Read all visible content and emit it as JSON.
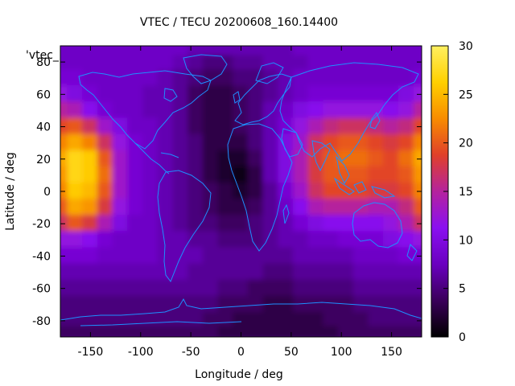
{
  "chart_data": {
    "type": "heatmap",
    "title": "VTEC / TECU 20200608_160.14400",
    "key_label": "'vtec_",
    "xlabel": "Longitude / deg",
    "ylabel": "Latitude / deg",
    "xlim": [
      -180,
      180
    ],
    "ylim": [
      -90,
      90
    ],
    "x_ticks": [
      -150,
      -100,
      -50,
      0,
      50,
      100,
      150
    ],
    "y_ticks": [
      -80,
      -60,
      -40,
      -20,
      0,
      20,
      40,
      60,
      80
    ],
    "x_tick_labels": [
      "-150",
      "-100",
      "-50",
      "0",
      "50",
      "100",
      "150"
    ],
    "y_tick_labels": [
      "-80",
      "-60",
      "-40",
      "-20",
      "0",
      "20",
      "40",
      "60",
      "80"
    ],
    "colorbar": {
      "range": [
        0,
        30
      ],
      "ticks": [
        0,
        5,
        10,
        15,
        20,
        25,
        30
      ],
      "tick_labels": [
        "0",
        "5",
        "10",
        "15",
        "20",
        "25",
        "30"
      ],
      "palette": [
        "#000000",
        "#3a0059",
        "#6a00c0",
        "#8a10f0",
        "#b5239d",
        "#e0402a",
        "#f88c00",
        "#ffd000",
        "#fff060"
      ]
    },
    "grid": false,
    "coastline_color": "#1e90ff",
    "longitudes": [
      -180,
      -165,
      -150,
      -135,
      -120,
      -105,
      -90,
      -75,
      -60,
      -45,
      -30,
      -15,
      0,
      15,
      30,
      45,
      60,
      75,
      90,
      105,
      120,
      135,
      150,
      165,
      180
    ],
    "latitudes": [
      87.5,
      80,
      70,
      60,
      50,
      40,
      30,
      20,
      10,
      0,
      -10,
      -20,
      -30,
      -40,
      -50,
      -60,
      -70,
      -80,
      -87.5
    ],
    "vtec": [
      [
        8,
        8,
        8,
        8,
        8,
        8,
        8,
        8,
        8,
        7,
        7,
        7,
        7,
        7,
        7,
        7,
        8,
        8,
        8,
        8,
        8,
        8,
        8,
        8,
        8
      ],
      [
        8,
        8,
        8,
        8,
        8,
        8,
        8,
        8,
        7,
        6,
        5,
        5,
        6,
        6,
        7,
        7,
        7,
        8,
        8,
        8,
        8,
        8,
        8,
        8,
        8
      ],
      [
        9,
        9,
        8,
        8,
        8,
        8,
        8,
        7,
        6,
        5,
        4,
        4,
        5,
        5,
        6,
        7,
        8,
        8,
        8,
        8,
        8,
        8,
        8,
        8,
        9
      ],
      [
        12,
        10,
        9,
        8,
        8,
        8,
        7,
        7,
        6,
        4,
        3,
        3,
        4,
        5,
        6,
        7,
        8,
        9,
        9,
        9,
        9,
        9,
        9,
        10,
        12
      ],
      [
        15,
        14,
        11,
        9,
        8,
        8,
        7,
        7,
        6,
        4,
        3,
        3,
        4,
        5,
        7,
        8,
        10,
        11,
        12,
        12,
        12,
        12,
        11,
        12,
        15
      ],
      [
        19,
        20,
        17,
        13,
        10,
        8,
        8,
        7,
        6,
        4,
        3,
        3,
        4,
        5,
        7,
        9,
        12,
        14,
        16,
        17,
        17,
        16,
        15,
        16,
        19
      ],
      [
        22,
        24,
        22,
        17,
        12,
        9,
        8,
        7,
        6,
        5,
        3,
        3,
        3,
        5,
        7,
        10,
        13,
        17,
        19,
        20,
        20,
        19,
        18,
        19,
        22
      ],
      [
        24,
        27,
        26,
        20,
        13,
        9,
        8,
        7,
        6,
        5,
        3,
        2,
        2,
        4,
        7,
        10,
        14,
        18,
        20,
        21,
        21,
        20,
        19,
        21,
        24
      ],
      [
        23,
        27,
        26,
        21,
        13,
        9,
        8,
        7,
        6,
        5,
        3,
        2,
        1,
        3,
        7,
        10,
        14,
        18,
        20,
        20,
        20,
        19,
        19,
        20,
        23
      ],
      [
        22,
        26,
        25,
        20,
        13,
        9,
        8,
        7,
        6,
        5,
        4,
        3,
        2,
        3,
        6,
        9,
        13,
        17,
        19,
        19,
        19,
        18,
        18,
        19,
        22
      ],
      [
        20,
        24,
        23,
        18,
        12,
        9,
        8,
        7,
        6,
        5,
        4,
        3,
        3,
        4,
        6,
        8,
        11,
        14,
        15,
        15,
        15,
        14,
        14,
        16,
        20
      ],
      [
        17,
        20,
        18,
        14,
        10,
        8,
        8,
        7,
        6,
        5,
        5,
        4,
        4,
        5,
        6,
        7,
        9,
        10,
        11,
        11,
        11,
        11,
        12,
        14,
        17
      ],
      [
        12,
        12,
        11,
        9,
        8,
        8,
        8,
        7,
        7,
        6,
        6,
        5,
        5,
        5,
        6,
        7,
        7,
        8,
        8,
        9,
        9,
        9,
        10,
        11,
        12
      ],
      [
        9,
        9,
        9,
        8,
        8,
        8,
        8,
        7,
        7,
        7,
        6,
        6,
        6,
        6,
        6,
        6,
        7,
        7,
        7,
        7,
        8,
        8,
        8,
        9,
        9
      ],
      [
        7,
        7,
        7,
        7,
        7,
        7,
        7,
        7,
        7,
        6,
        6,
        6,
        6,
        6,
        5,
        5,
        6,
        6,
        6,
        6,
        7,
        7,
        7,
        7,
        7
      ],
      [
        6,
        6,
        6,
        6,
        6,
        6,
        6,
        6,
        6,
        6,
        6,
        5,
        5,
        4,
        4,
        4,
        5,
        5,
        5,
        5,
        6,
        6,
        6,
        6,
        6
      ],
      [
        5,
        5,
        5,
        5,
        5,
        5,
        5,
        5,
        5,
        5,
        5,
        4,
        4,
        4,
        3,
        3,
        4,
        4,
        4,
        4,
        5,
        5,
        5,
        5,
        5
      ],
      [
        5,
        5,
        5,
        5,
        5,
        5,
        5,
        5,
        5,
        5,
        4,
        4,
        3,
        3,
        3,
        3,
        3,
        3,
        4,
        4,
        4,
        5,
        5,
        5,
        5
      ],
      [
        4,
        4,
        4,
        4,
        4,
        4,
        4,
        4,
        4,
        4,
        4,
        3,
        3,
        3,
        3,
        3,
        3,
        3,
        3,
        4,
        4,
        4,
        4,
        4,
        4
      ]
    ]
  }
}
